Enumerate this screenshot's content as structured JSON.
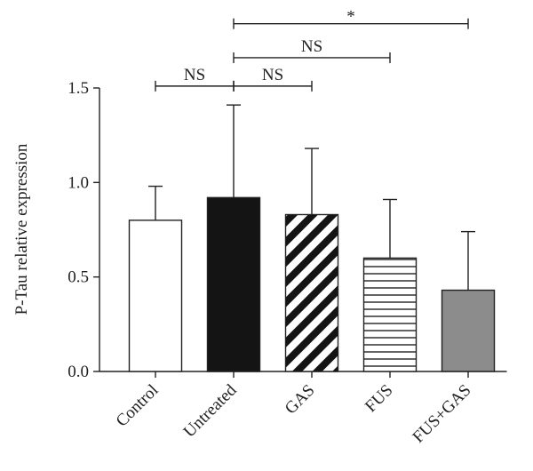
{
  "chart_data": {
    "type": "bar",
    "title": "",
    "xlabel": "",
    "ylabel": "P-Tau relative expression",
    "ylim": [
      0,
      1.5
    ],
    "yticks": [
      0.0,
      0.5,
      1.0,
      1.5
    ],
    "ytick_labels": [
      "0.0",
      "0.5",
      "1.0",
      "1.5"
    ],
    "grid": false,
    "categories": [
      "Control",
      "Untreated",
      "GAS",
      "FUS",
      "FUS+GAS"
    ],
    "values": [
      0.8,
      0.92,
      0.83,
      0.6,
      0.43
    ],
    "error_upper": [
      0.98,
      1.41,
      1.18,
      0.91,
      0.74
    ],
    "bar_styles": [
      {
        "pattern": "open",
        "fill": "#ffffff"
      },
      {
        "pattern": "solid",
        "fill": "#141414"
      },
      {
        "pattern": "diagonal",
        "fill": "#ffffff"
      },
      {
        "pattern": "horizontal",
        "fill": "#ffffff"
      },
      {
        "pattern": "solid",
        "fill": "#8c8c8c"
      }
    ],
    "significance": [
      {
        "from": "Control",
        "to": "Untreated",
        "label": "NS",
        "height": 1.51
      },
      {
        "from": "Untreated",
        "to": "GAS",
        "label": "NS",
        "height": 1.51
      },
      {
        "from": "Untreated",
        "to": "FUS",
        "label": "NS",
        "height": 1.66
      },
      {
        "from": "Untreated",
        "to": "FUS+GAS",
        "label": "*",
        "height": 1.84
      }
    ]
  }
}
